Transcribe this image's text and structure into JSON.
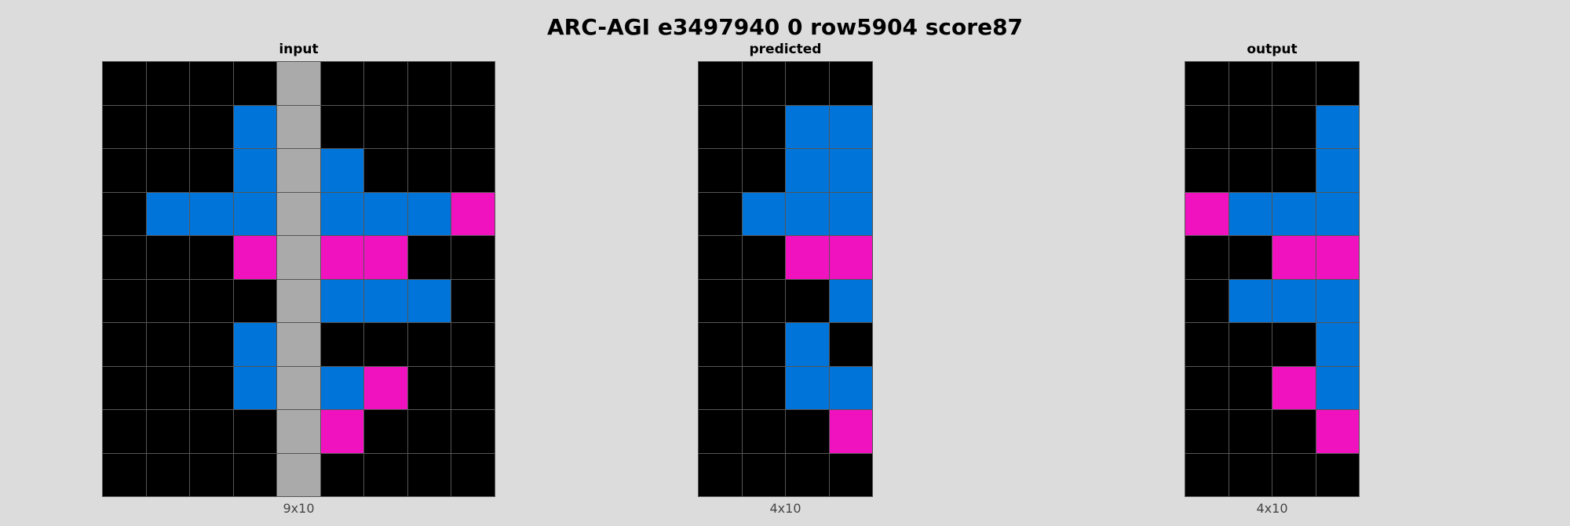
{
  "title": "ARC-AGI e3497940 0 row5904 score87",
  "palette": {
    "0": "#000000",
    "1": "#0074d9",
    "5": "#aaaaaa",
    "6": "#f012be"
  },
  "panels": [
    {
      "label": "input",
      "dims": "9x10",
      "rows": [
        [
          0,
          0,
          0,
          0,
          5,
          0,
          0,
          0,
          0
        ],
        [
          0,
          0,
          0,
          1,
          5,
          0,
          0,
          0,
          0
        ],
        [
          0,
          0,
          0,
          1,
          5,
          1,
          0,
          0,
          0
        ],
        [
          0,
          1,
          1,
          1,
          5,
          1,
          1,
          1,
          6
        ],
        [
          0,
          0,
          0,
          6,
          5,
          6,
          6,
          0,
          0
        ],
        [
          0,
          0,
          0,
          0,
          5,
          1,
          1,
          1,
          0
        ],
        [
          0,
          0,
          0,
          1,
          5,
          0,
          0,
          0,
          0
        ],
        [
          0,
          0,
          0,
          1,
          5,
          1,
          6,
          0,
          0
        ],
        [
          0,
          0,
          0,
          0,
          5,
          6,
          0,
          0,
          0
        ],
        [
          0,
          0,
          0,
          0,
          5,
          0,
          0,
          0,
          0
        ]
      ]
    },
    {
      "label": "predicted",
      "dims": "4x10",
      "rows": [
        [
          0,
          0,
          0,
          0
        ],
        [
          0,
          0,
          1,
          1
        ],
        [
          0,
          0,
          1,
          1
        ],
        [
          0,
          1,
          1,
          1
        ],
        [
          0,
          0,
          6,
          6
        ],
        [
          0,
          0,
          0,
          1
        ],
        [
          0,
          0,
          1,
          0
        ],
        [
          0,
          0,
          1,
          1
        ],
        [
          0,
          0,
          0,
          6
        ],
        [
          0,
          0,
          0,
          0
        ]
      ]
    },
    {
      "label": "output",
      "dims": "4x10",
      "rows": [
        [
          0,
          0,
          0,
          0
        ],
        [
          0,
          0,
          0,
          1
        ],
        [
          0,
          0,
          0,
          1
        ],
        [
          6,
          1,
          1,
          1
        ],
        [
          0,
          0,
          6,
          6
        ],
        [
          0,
          1,
          1,
          1
        ],
        [
          0,
          0,
          0,
          1
        ],
        [
          0,
          0,
          6,
          1
        ],
        [
          0,
          0,
          0,
          6
        ],
        [
          0,
          0,
          0,
          0
        ]
      ]
    }
  ]
}
